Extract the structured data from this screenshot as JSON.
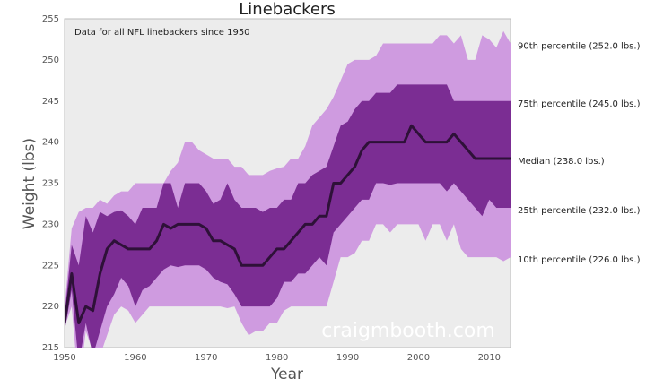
{
  "chart_data": {
    "type": "percentile-band",
    "title": "Linebackers",
    "annotation": "Data for all NFL linebackers since 1950",
    "watermark": "craigmbooth.com",
    "xlabel": "Year",
    "ylabel": "Weight (lbs)",
    "xlim": [
      1950,
      2013
    ],
    "xticks": [
      1950,
      1960,
      1970,
      1980,
      1990,
      2000,
      2010
    ],
    "ylim": [
      215,
      255
    ],
    "yticks": [
      215,
      220,
      225,
      230,
      235,
      240,
      245,
      250,
      255
    ],
    "grid": false,
    "x": [
      1950,
      1951,
      1952,
      1953,
      1954,
      1955,
      1956,
      1957,
      1958,
      1959,
      1960,
      1961,
      1962,
      1963,
      1964,
      1965,
      1966,
      1967,
      1968,
      1969,
      1970,
      1971,
      1972,
      1973,
      1974,
      1975,
      1976,
      1977,
      1978,
      1979,
      1980,
      1981,
      1982,
      1983,
      1984,
      1985,
      1986,
      1987,
      1988,
      1989,
      1990,
      1991,
      1992,
      1993,
      1994,
      1995,
      1996,
      1997,
      1998,
      1999,
      2000,
      2001,
      2002,
      2003,
      2004,
      2005,
      2006,
      2007,
      2008,
      2009,
      2010,
      2011,
      2012,
      2013
    ],
    "series": [
      {
        "name": "90th percentile (252.0 lbs.)",
        "color": "#cf9be0",
        "values": [
          220,
          229.5,
          231.5,
          232,
          232,
          233,
          232.5,
          233.5,
          234,
          234,
          235,
          235,
          235,
          235,
          235,
          236.5,
          237.5,
          240,
          240,
          239,
          238.5,
          238,
          238,
          238,
          237,
          237,
          236,
          236,
          236,
          236.5,
          236.8,
          237,
          238,
          238,
          239.5,
          242,
          243,
          244,
          245.5,
          247.5,
          249.5,
          250,
          250,
          250,
          250.5,
          252,
          252,
          252,
          252,
          252,
          252,
          252,
          252,
          253,
          253,
          252,
          253,
          250,
          250,
          253,
          252.5,
          251.5,
          253.5,
          252
        ]
      },
      {
        "name": "75th percentile (245.0 lbs.)",
        "color": "#7b2d93",
        "values": [
          219,
          227.5,
          225,
          231,
          229,
          231.5,
          231,
          231.5,
          231.7,
          231,
          230,
          232,
          232,
          232,
          235,
          235,
          232,
          235,
          235,
          235,
          234,
          232.5,
          233,
          235,
          233,
          232,
          232,
          232,
          231.5,
          232,
          232,
          233,
          233,
          235,
          235,
          236,
          236.5,
          237,
          239.5,
          242,
          242.5,
          244,
          245,
          245,
          246,
          246,
          246,
          247,
          247,
          247,
          247,
          247,
          247,
          247,
          247,
          245,
          245,
          245,
          245,
          245,
          245,
          245,
          245,
          245
        ]
      },
      {
        "name": "Median (238.0 lbs.)",
        "color": "#2e1138",
        "values": [
          218,
          224,
          218,
          220,
          219.5,
          224,
          227,
          228,
          227.5,
          227,
          227,
          227,
          227,
          228,
          230,
          229.5,
          230,
          230,
          230,
          230,
          229.5,
          228,
          228,
          227.5,
          227,
          225,
          225,
          225,
          225,
          226,
          227,
          227,
          228,
          229,
          230,
          230,
          231,
          231,
          235,
          235,
          236,
          237,
          239,
          240,
          240,
          240,
          240,
          240,
          240,
          242,
          241,
          240,
          240,
          240,
          240,
          241,
          240,
          239,
          238,
          238,
          238,
          238,
          238,
          238
        ]
      },
      {
        "name": "25th percentile (232.0 lbs.)",
        "color": "#7b2d93",
        "values": [
          217,
          222,
          213,
          218,
          214,
          217,
          220,
          221.5,
          223.5,
          222.5,
          220,
          222,
          222.5,
          223.5,
          224.5,
          225,
          224.8,
          225,
          225,
          225,
          224.5,
          223.5,
          223,
          222.7,
          221.5,
          220,
          220,
          220,
          220,
          220,
          221,
          223,
          223,
          224,
          224,
          225,
          226,
          225,
          229,
          230,
          231,
          232,
          233,
          233,
          235,
          235,
          234.8,
          235,
          235,
          235,
          235,
          235,
          235,
          235,
          234,
          235,
          234,
          233,
          232,
          231,
          233,
          232,
          232,
          232
        ]
      },
      {
        "name": "10th percentile (226.0 lbs.)",
        "color": "#cf9be0",
        "values": [
          217.5,
          220,
          210,
          217,
          214.5,
          214,
          216.5,
          219,
          220,
          219.5,
          218,
          219,
          220,
          220,
          220,
          220,
          220,
          220,
          220,
          220,
          220,
          220,
          220,
          219.8,
          220,
          218,
          216.5,
          217,
          217,
          218,
          218,
          219.5,
          220,
          220,
          220,
          220,
          220,
          220,
          223,
          226,
          226,
          226.5,
          228,
          228,
          230,
          230,
          229,
          230,
          230,
          230,
          230,
          228,
          230,
          230,
          228,
          230,
          227,
          226,
          226,
          226,
          226,
          226,
          225.5,
          226
        ]
      }
    ]
  }
}
